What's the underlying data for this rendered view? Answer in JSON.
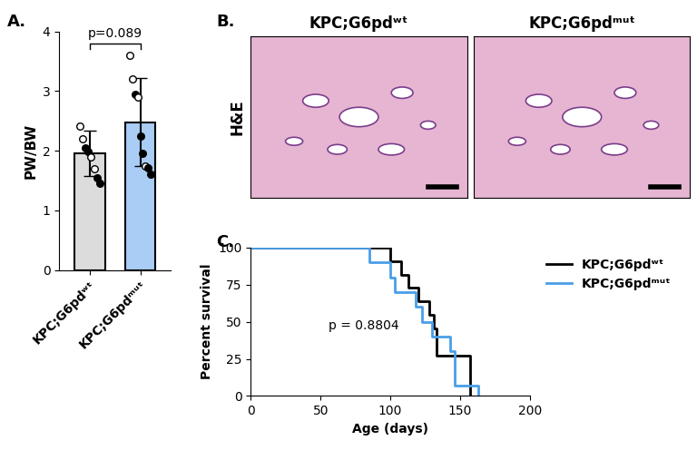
{
  "chart_data": [
    {
      "panel": "A.",
      "type": "bar",
      "categories": [
        "KPC;G6pdʷᵗ",
        "KPC;G6pdᵐᵘᵗ"
      ],
      "values": [
        1.95,
        2.48
      ],
      "errors": [
        0.38,
        0.74
      ],
      "colors": [
        "#dcdcdc",
        "#a9cdf5"
      ],
      "points": [
        [
          2.42,
          2.2,
          2.05,
          1.98,
          1.9,
          1.7,
          1.55,
          1.45
        ],
        [
          3.6,
          3.2,
          2.95,
          2.9,
          2.25,
          1.95,
          1.75,
          1.72,
          1.6
        ]
      ],
      "points_filled": [
        [
          false,
          false,
          true,
          true,
          false,
          false,
          true,
          true
        ],
        [
          false,
          false,
          true,
          false,
          true,
          true,
          false,
          true,
          true
        ]
      ],
      "y_label": "PW/BW",
      "ylim": [
        0,
        4
      ],
      "yticks": [
        0,
        1,
        2,
        3,
        4
      ],
      "annotations": [
        "p=0.089"
      ]
    },
    {
      "panel": "B.",
      "type": "image",
      "titles": [
        "KPC;G6pdʷᵗ",
        "KPC;G6pdᵐᵘᵗ"
      ],
      "y_label": "H&E",
      "tick_labels": false
    },
    {
      "panel": "C.",
      "type": "step",
      "series": [
        {
          "name": "KPC;G6pdʷᵗ",
          "color": "#000000",
          "x": [
            0,
            100,
            108,
            113,
            120,
            128,
            131,
            133,
            157
          ],
          "values": [
            100,
            90.9,
            81.8,
            72.7,
            63.6,
            54.5,
            45.5,
            27.3,
            0
          ]
        },
        {
          "name": "KPC;G6pdᵐᵘᵗ",
          "color": "#4a9ee8",
          "x": [
            0,
            85,
            100,
            103,
            118,
            123,
            130,
            143,
            146,
            163
          ],
          "values": [
            100,
            90,
            80,
            70,
            60,
            50,
            40,
            30,
            7,
            0
          ]
        }
      ],
      "x_label": "Age (days)",
      "y_label": "Percent survival",
      "xlim": [
        0,
        200
      ],
      "xticks": [
        0,
        50,
        100,
        150,
        200
      ],
      "ylim": [
        0,
        100
      ],
      "yticks": [
        0,
        25,
        50,
        75,
        100
      ],
      "annotations": [
        "p = 0.8804"
      ],
      "legend": "right"
    }
  ]
}
